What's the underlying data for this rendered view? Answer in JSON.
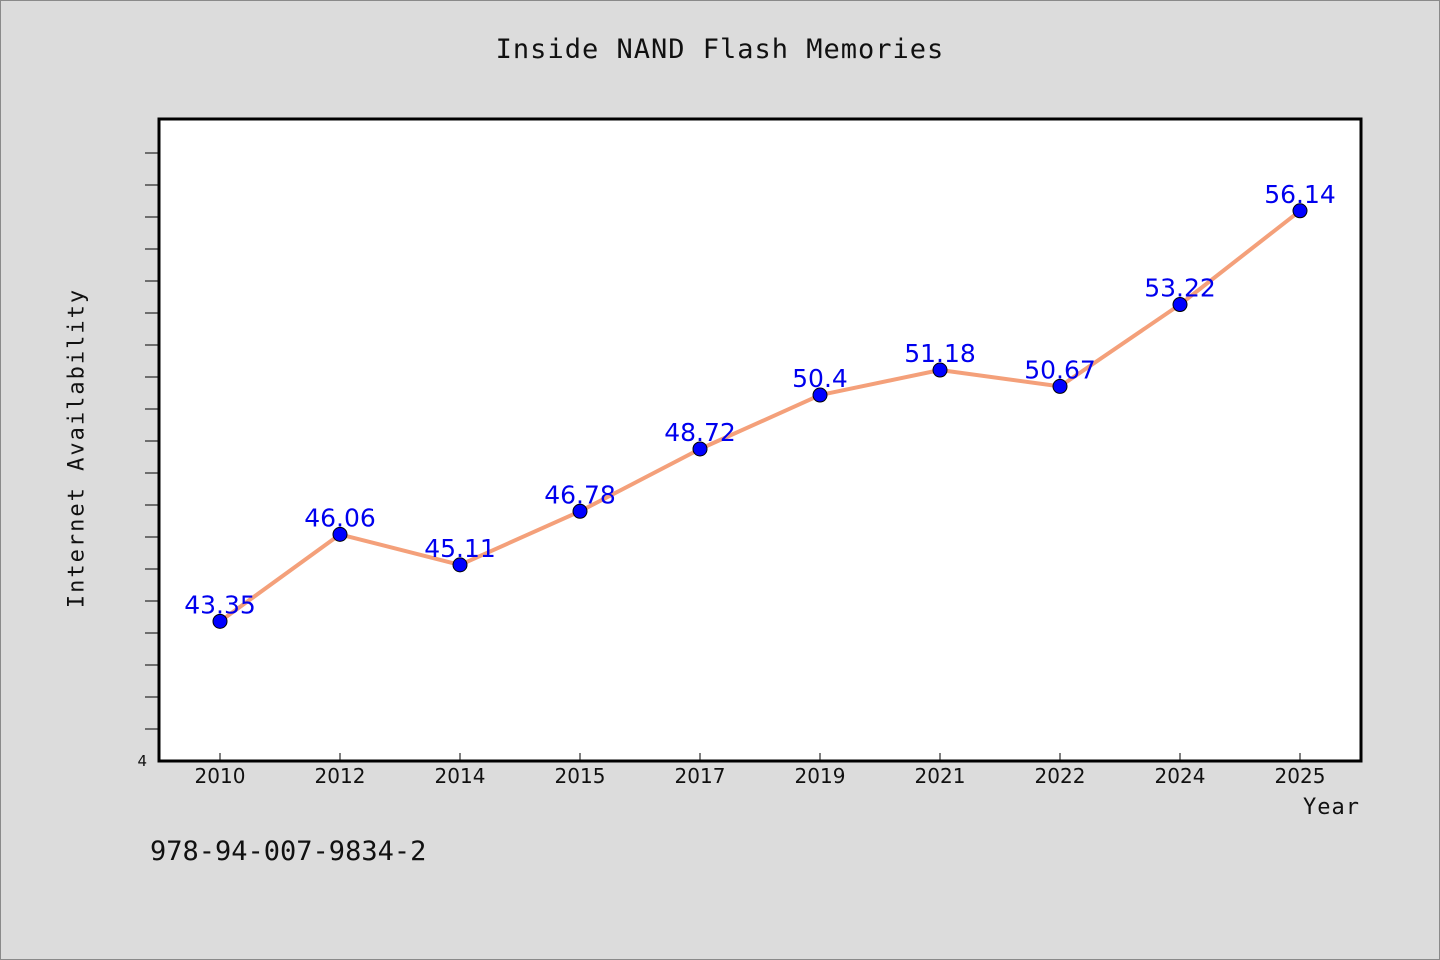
{
  "chart_data": {
    "type": "line",
    "title": "Inside NAND Flash Memories",
    "xlabel": "Year",
    "ylabel": "Internet Availability",
    "categories": [
      "2010",
      "2012",
      "2014",
      "2015",
      "2017",
      "2019",
      "2021",
      "2022",
      "2024",
      "2025"
    ],
    "values": [
      43.35,
      46.06,
      45.11,
      46.78,
      48.72,
      50.4,
      51.18,
      50.67,
      53.22,
      56.14
    ],
    "data_labels": [
      "43.35",
      "46.06",
      "45.11",
      "46.78",
      "48.72",
      "50.4",
      "51.18",
      "50.67",
      "53.22",
      "56.14"
    ],
    "ytick_label": "4",
    "ylim": [
      39,
      59
    ],
    "grid": false,
    "line_color": "#f4a07a",
    "marker_color": "#0000ff",
    "label_color": "#0000ee"
  },
  "footer": {
    "isbn": "978-94-007-9834-2"
  }
}
